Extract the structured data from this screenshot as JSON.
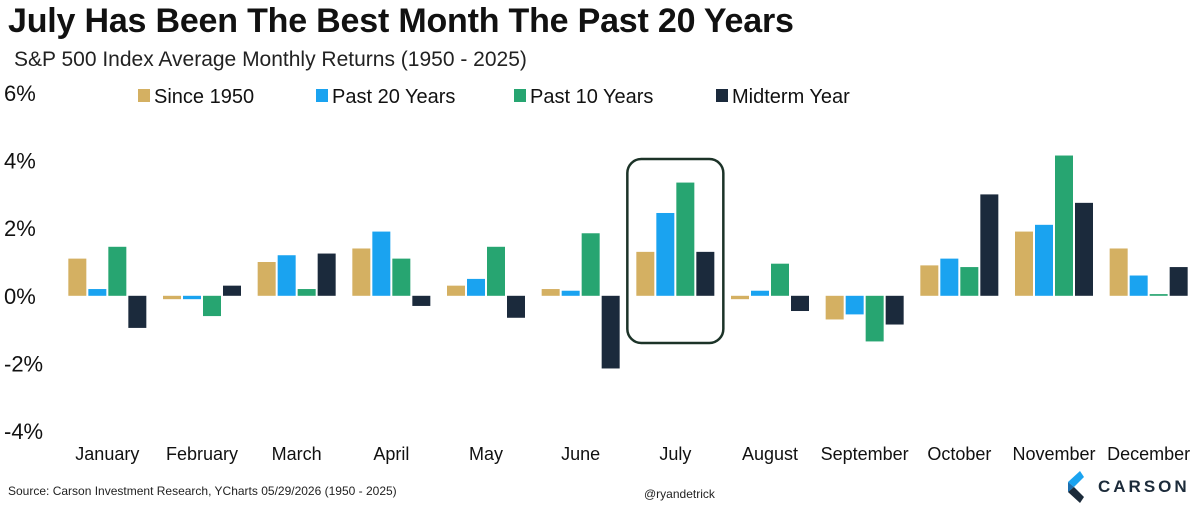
{
  "header": {
    "title": "July Has Been The Best Month The Past 20 Years",
    "subtitle": "S&P 500 Index Average Monthly Returns (1950 - 2025)"
  },
  "footer": {
    "source": "Source: Carson Investment Research, YCharts 05/29/2026 (1950 - 2025)",
    "handle": "@ryandetrick",
    "logo_text": "CARSON"
  },
  "chart_data": {
    "type": "bar",
    "title": "July Has Been The Best Month The Past 20 Years",
    "subtitle": "S&P 500 Index Average Monthly Returns (1950 - 2025)",
    "xlabel": "",
    "ylabel": "",
    "ylim": [
      -4,
      6
    ],
    "yticks": [
      -4,
      -2,
      0,
      2,
      4,
      6
    ],
    "ytick_labels": [
      "-4%",
      "-2%",
      "0%",
      "2%",
      "4%",
      "6%"
    ],
    "grid": false,
    "legend_position": "top",
    "categories": [
      "January",
      "February",
      "March",
      "April",
      "May",
      "June",
      "July",
      "August",
      "September",
      "October",
      "November",
      "December"
    ],
    "series": [
      {
        "name": "Since 1950",
        "color": "#d4b062",
        "values": [
          1.1,
          -0.1,
          1.0,
          1.4,
          0.3,
          0.2,
          1.3,
          -0.1,
          -0.7,
          0.9,
          1.9,
          1.4
        ]
      },
      {
        "name": "Past 20 Years",
        "color": "#1aa3f0",
        "values": [
          0.2,
          -0.1,
          1.2,
          1.9,
          0.5,
          0.15,
          2.45,
          0.15,
          -0.55,
          1.1,
          2.1,
          0.6
        ]
      },
      {
        "name": "Past 10 Years",
        "color": "#27a571",
        "values": [
          1.45,
          -0.6,
          0.2,
          1.1,
          1.45,
          1.85,
          3.35,
          0.95,
          -1.35,
          0.85,
          4.15,
          0.05
        ]
      },
      {
        "name": "Midterm Year",
        "color": "#1b2a3c",
        "values": [
          -0.95,
          0.3,
          1.25,
          -0.3,
          -0.65,
          -2.15,
          1.3,
          -0.45,
          -0.85,
          3.0,
          2.75,
          0.85
        ]
      }
    ],
    "highlight": {
      "category": "July",
      "color": "#1c3328"
    }
  }
}
